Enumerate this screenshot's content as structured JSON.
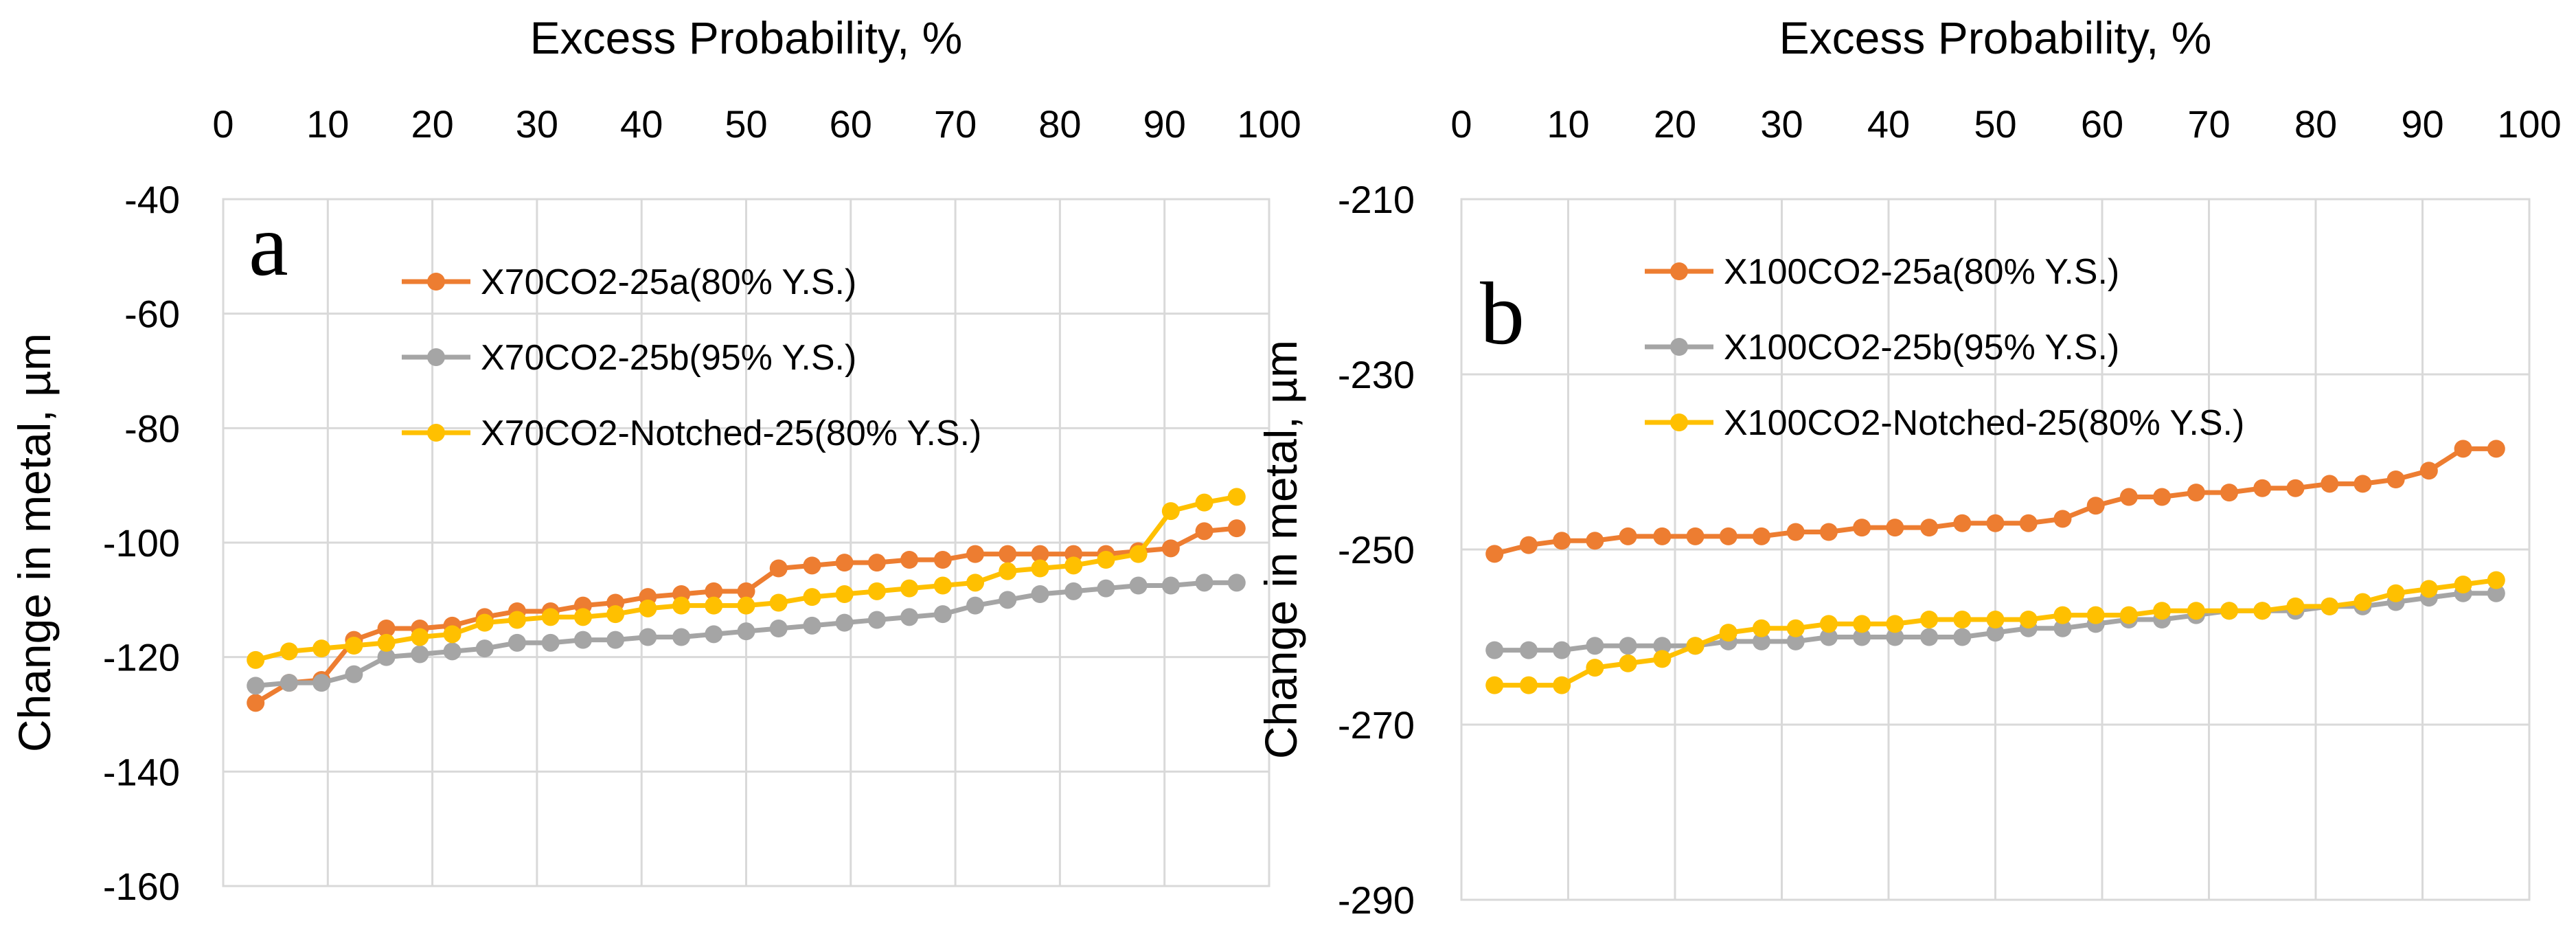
{
  "chart_data": [
    {
      "type": "line",
      "panel_label": "a",
      "title": "",
      "xlabel": "Excess Probability, %",
      "ylabel": "Change in metal, µm",
      "x_axis_position": "top",
      "xlim": [
        0,
        100
      ],
      "ylim": [
        -160,
        -40
      ],
      "xticks": [
        0,
        10,
        20,
        30,
        40,
        50,
        60,
        70,
        80,
        90,
        100
      ],
      "yticks": [
        -40,
        -60,
        -80,
        -100,
        -120,
        -140,
        -160
      ],
      "grid": true,
      "legend_position": "top-center",
      "x": [
        3.1,
        6.3,
        9.4,
        12.5,
        15.6,
        18.8,
        21.9,
        25.0,
        28.1,
        31.3,
        34.4,
        37.5,
        40.6,
        43.8,
        46.9,
        50.0,
        53.1,
        56.3,
        59.4,
        62.5,
        65.6,
        68.8,
        71.9,
        75.0,
        78.1,
        81.3,
        84.4,
        87.5,
        90.6,
        93.8,
        96.9
      ],
      "series": [
        {
          "name": "X70CO2-25a(80% Y.S.)",
          "color": "#ed7d31",
          "values": [
            -128,
            -124.5,
            -124,
            -117,
            -115,
            -115,
            -114.5,
            -113,
            -112,
            -112,
            -111,
            -110.5,
            -109.5,
            -109,
            -108.5,
            -108.5,
            -104.5,
            -104,
            -103.5,
            -103.5,
            -103,
            -103,
            -102,
            -102,
            -102,
            -102,
            -102,
            -101.5,
            -101,
            -98,
            -97.5
          ]
        },
        {
          "name": "X70CO2-25b(95% Y.S.)",
          "color": "#a5a5a5",
          "values": [
            -125,
            -124.5,
            -124.5,
            -123,
            -120,
            -119.5,
            -119,
            -118.5,
            -117.5,
            -117.5,
            -117,
            -117,
            -116.5,
            -116.5,
            -116,
            -115.5,
            -115,
            -114.5,
            -114,
            -113.5,
            -113,
            -112.5,
            -111,
            -110,
            -109,
            -108.5,
            -108,
            -107.5,
            -107.5,
            -107,
            -107
          ]
        },
        {
          "name": "X70CO2-Notched-25(80% Y.S.)",
          "color": "#ffc000",
          "values": [
            -120.5,
            -119,
            -118.5,
            -118,
            -117.5,
            -116.5,
            -116,
            -114,
            -113.5,
            -113,
            -113,
            -112.5,
            -111.5,
            -111,
            -111,
            -111,
            -110.5,
            -109.5,
            -109,
            -108.5,
            -108,
            -107.5,
            -107,
            -105,
            -104.5,
            -104,
            -103,
            -102,
            -94.5,
            -93,
            -92
          ]
        }
      ]
    },
    {
      "type": "line",
      "panel_label": "b",
      "title": "",
      "xlabel": "Excess Probability, %",
      "ylabel": "Change in metal, µm",
      "x_axis_position": "top",
      "xlim": [
        0,
        100
      ],
      "ylim": [
        -290,
        -210
      ],
      "xticks": [
        0,
        10,
        20,
        30,
        40,
        50,
        60,
        70,
        80,
        90,
        100
      ],
      "yticks": [
        -210,
        -230,
        -250,
        -270,
        -290
      ],
      "grid": true,
      "legend_position": "top-center",
      "x": [
        3.1,
        6.3,
        9.4,
        12.5,
        15.6,
        18.8,
        21.9,
        25.0,
        28.1,
        31.3,
        34.4,
        37.5,
        40.6,
        43.8,
        46.9,
        50.0,
        53.1,
        56.3,
        59.4,
        62.5,
        65.6,
        68.8,
        71.9,
        75.0,
        78.1,
        81.3,
        84.4,
        87.5,
        90.6,
        93.8,
        96.9
      ],
      "series": [
        {
          "name": "X100CO2-25a(80% Y.S.)",
          "color": "#ed7d31",
          "values": [
            -250.5,
            -249.5,
            -249,
            -249,
            -248.5,
            -248.5,
            -248.5,
            -248.5,
            -248.5,
            -248,
            -248,
            -247.5,
            -247.5,
            -247.5,
            -247,
            -247,
            -247,
            -246.5,
            -245,
            -244,
            -244,
            -243.5,
            -243.5,
            -243,
            -243,
            -242.5,
            -242.5,
            -242,
            -241,
            -238.5,
            -238.5
          ]
        },
        {
          "name": "X100CO2-25b(95% Y.S.)",
          "color": "#a5a5a5",
          "values": [
            -261.5,
            -261.5,
            -261.5,
            -261,
            -261,
            -261,
            -261,
            -260.5,
            -260.5,
            -260.5,
            -260,
            -260,
            -260,
            -260,
            -260,
            -259.5,
            -259,
            -259,
            -258.5,
            -258,
            -258,
            -257.5,
            -257,
            -257,
            -257,
            -256.5,
            -256.5,
            -256,
            -255.5,
            -255,
            -255
          ]
        },
        {
          "name": "X100CO2-Notched-25(80% Y.S.)",
          "color": "#ffc000",
          "values": [
            -265.5,
            -265.5,
            -265.5,
            -263.5,
            -263,
            -262.5,
            -261,
            -259.5,
            -259,
            -259,
            -258.5,
            -258.5,
            -258.5,
            -258,
            -258,
            -258,
            -258,
            -257.5,
            -257.5,
            -257.5,
            -257,
            -257,
            -257,
            -257,
            -256.5,
            -256.5,
            -256,
            -255,
            -254.5,
            -254,
            -253.5
          ]
        }
      ]
    }
  ]
}
